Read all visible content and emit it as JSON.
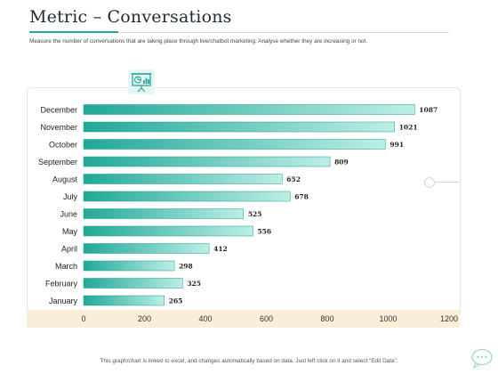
{
  "header": {
    "title": "Metric – Conversations",
    "subtitle": "Measure the number of conversations that are taking place through live/chatbot marketing. Analyse whether they are increasing or not."
  },
  "footer": {
    "note": "This graph/chart is linked to excel, and changes automatically based on data. Just left click on it and select “Edit Data”."
  },
  "icons": {
    "badge": "presentation-chart-icon",
    "decoration": "circle-connector-icon",
    "corner": "chat-bubble-icon"
  },
  "colors": {
    "accent": "#22a99a",
    "bar_start": "#21a898",
    "bar_end": "#bdeee6",
    "axis_band": "#fbeed9"
  },
  "chart_data": {
    "type": "bar",
    "orientation": "horizontal",
    "categories": [
      "December",
      "November",
      "October",
      "September",
      "August",
      "July",
      "June",
      "May",
      "April",
      "March",
      "February",
      "January"
    ],
    "values": [
      1087,
      1021,
      991,
      809,
      652,
      678,
      525,
      556,
      412,
      298,
      325,
      265
    ],
    "xlim": [
      0,
      1200
    ],
    "xticks": [
      0,
      200,
      400,
      600,
      800,
      1000,
      1200
    ],
    "title": "",
    "xlabel": "",
    "ylabel": "",
    "grid": false,
    "legend": "none",
    "data_labels": true
  }
}
